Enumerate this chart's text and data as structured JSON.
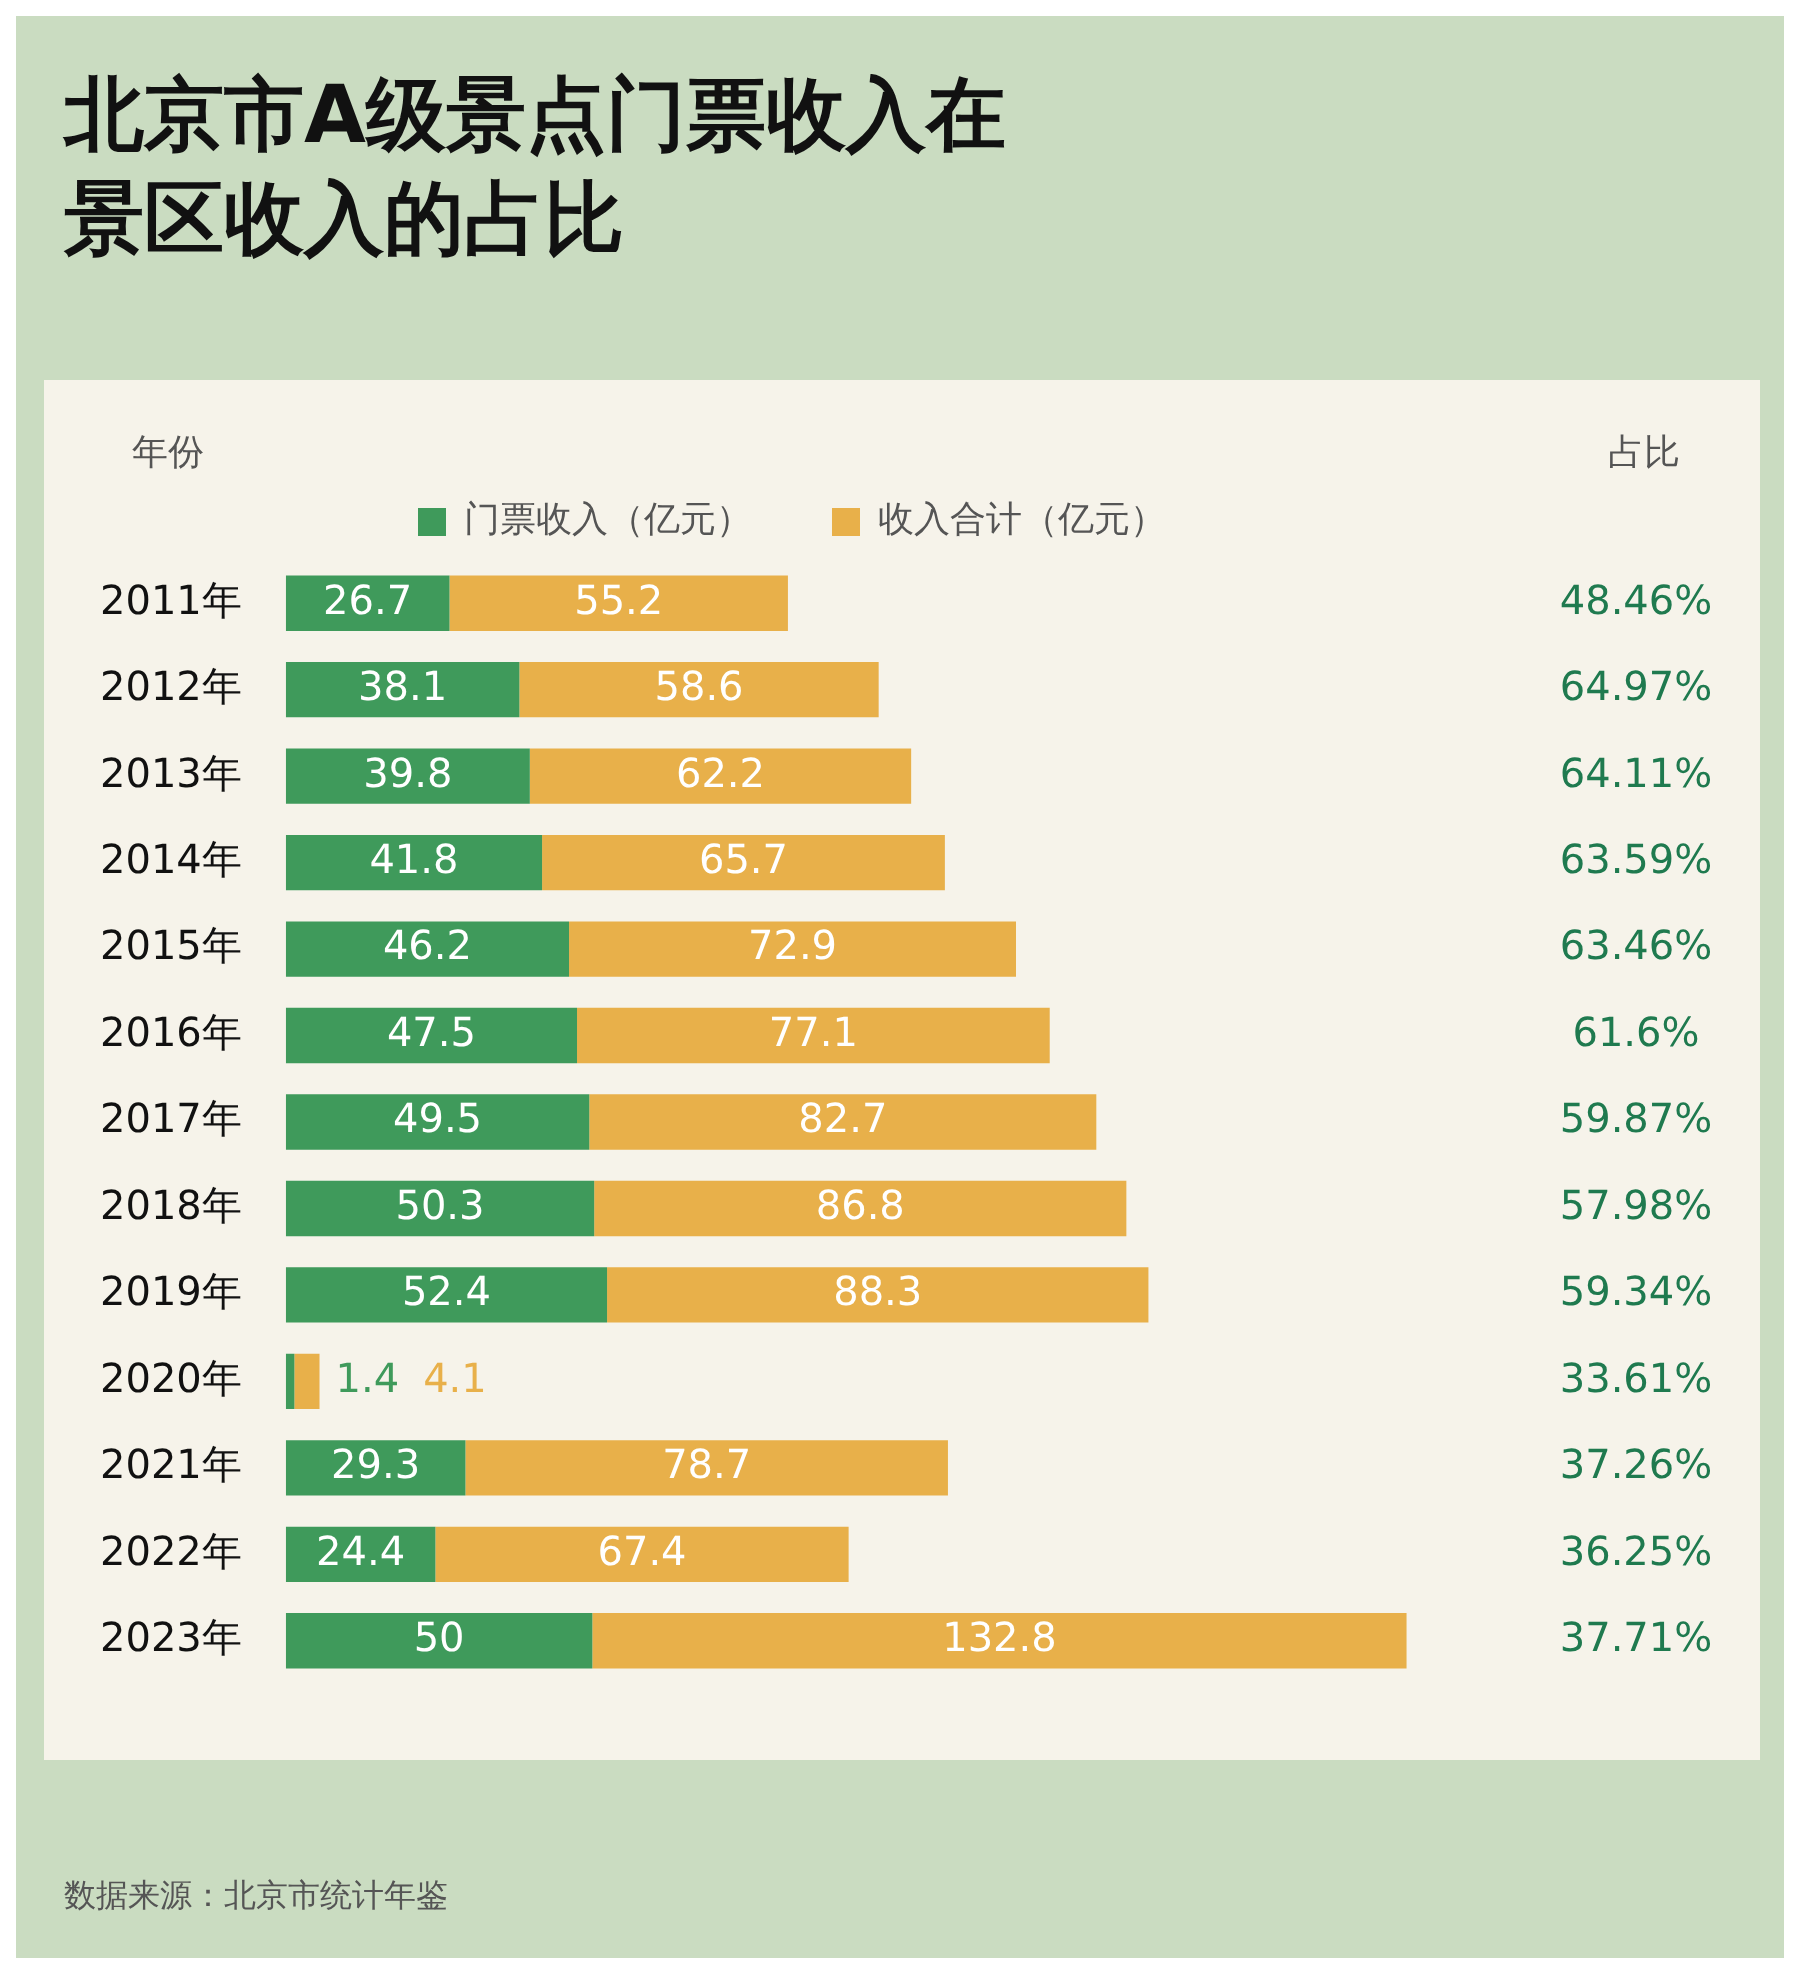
{
  "chart_data": {
    "type": "bar",
    "orientation": "horizontal",
    "stacked": true,
    "title": "北京市A级景点门票收入在景区收入的占比",
    "ylabel": "年份",
    "categories": [
      "2011年",
      "2012年",
      "2013年",
      "2014年",
      "2015年",
      "2016年",
      "2017年",
      "2018年",
      "2019年",
      "2020年",
      "2021年",
      "2022年",
      "2023年"
    ],
    "series": [
      {
        "name": "门票收入（亿元）",
        "color": "#3f9a5b",
        "values": [
          26.7,
          38.1,
          39.8,
          41.8,
          46.2,
          47.5,
          49.5,
          50.3,
          52.4,
          1.4,
          29.3,
          24.4,
          50
        ]
      },
      {
        "name": "收入合计（亿元）",
        "color": "#e8b04a",
        "values": [
          55.2,
          58.6,
          62.2,
          65.7,
          72.9,
          77.1,
          82.7,
          86.8,
          88.3,
          4.1,
          78.7,
          67.4,
          132.8
        ]
      }
    ],
    "data_labels": true,
    "legend": "top",
    "grid": false,
    "annotations": [
      "占比",
      "48.46%",
      "64.97%",
      "64.11%",
      "63.59%",
      "63.46%",
      "61.6%",
      "59.87%",
      "57.98%",
      "59.34%",
      "33.61%",
      "37.26%",
      "36.25%",
      "37.71%",
      "数据来源：北京市统计年鉴"
    ]
  }
}
